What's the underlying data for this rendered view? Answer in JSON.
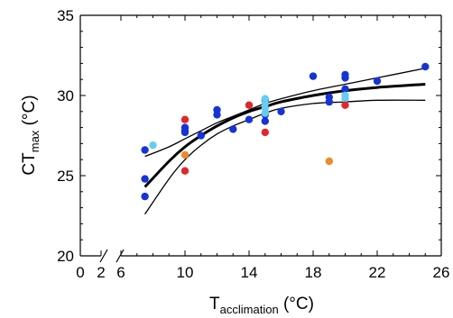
{
  "chart_data": {
    "type": "scatter",
    "title": "",
    "xlabel": {
      "main": "T",
      "sub": "acclimation",
      "unit": " (°C)"
    },
    "ylabel": {
      "main": "CT",
      "sub": "max",
      "unit": " (°C)"
    },
    "xlim": [
      6,
      26
    ],
    "ylim": [
      20,
      35
    ],
    "x_ticks": [
      0,
      2,
      6,
      10,
      14,
      18,
      22,
      26
    ],
    "x_tick_labels": [
      "0",
      "2",
      "6",
      "10",
      "14",
      "18",
      "22",
      "26"
    ],
    "y_ticks": [
      20,
      25,
      30,
      35
    ],
    "y_tick_labels": [
      "20",
      "25",
      "30",
      "35"
    ],
    "x_axis_break": true,
    "grid": false,
    "legend": "none",
    "colors": {
      "blue": "#1533d6",
      "light_blue": "#66ccf2",
      "red": "#e3262b",
      "orange": "#ec8a2c",
      "line": "#000000"
    },
    "series": [
      {
        "color": "blue",
        "points": [
          {
            "x": 7.5,
            "y": 26.6
          },
          {
            "x": 7.5,
            "y": 24.8
          },
          {
            "x": 7.5,
            "y": 23.7
          },
          {
            "x": 10,
            "y": 28.0
          },
          {
            "x": 10,
            "y": 27.8
          },
          {
            "x": 10,
            "y": 27.7
          },
          {
            "x": 11,
            "y": 27.5
          },
          {
            "x": 12,
            "y": 29.1
          },
          {
            "x": 12,
            "y": 28.8
          },
          {
            "x": 13,
            "y": 27.9
          },
          {
            "x": 14,
            "y": 28.5
          },
          {
            "x": 15,
            "y": 29.7
          },
          {
            "x": 15,
            "y": 28.8
          },
          {
            "x": 15,
            "y": 28.4
          },
          {
            "x": 16,
            "y": 29.0
          },
          {
            "x": 18,
            "y": 31.2
          },
          {
            "x": 19,
            "y": 29.9
          },
          {
            "x": 19,
            "y": 29.6
          },
          {
            "x": 20,
            "y": 31.3
          },
          {
            "x": 20,
            "y": 31.1
          },
          {
            "x": 20,
            "y": 30.4
          },
          {
            "x": 22,
            "y": 30.9
          },
          {
            "x": 25,
            "y": 31.8
          }
        ]
      },
      {
        "color": "light_blue",
        "points": [
          {
            "x": 8,
            "y": 26.9
          },
          {
            "x": 15,
            "y": 29.8
          },
          {
            "x": 15,
            "y": 29.5
          },
          {
            "x": 15,
            "y": 29.2
          },
          {
            "x": 15,
            "y": 28.9
          },
          {
            "x": 20,
            "y": 30.0
          },
          {
            "x": 20,
            "y": 29.8
          }
        ]
      },
      {
        "color": "red",
        "points": [
          {
            "x": 10,
            "y": 28.5
          },
          {
            "x": 10,
            "y": 25.3
          },
          {
            "x": 14,
            "y": 29.4
          },
          {
            "x": 15,
            "y": 27.7
          },
          {
            "x": 20,
            "y": 29.4
          }
        ]
      },
      {
        "color": "orange",
        "points": [
          {
            "x": 10,
            "y": 26.3
          },
          {
            "x": 19,
            "y": 25.9
          }
        ]
      }
    ],
    "fit_lines": [
      {
        "style": "fit",
        "points": [
          [
            7.5,
            24.3
          ],
          [
            9,
            25.9
          ],
          [
            10,
            26.8
          ],
          [
            11,
            27.5
          ],
          [
            12,
            28.1
          ],
          [
            13,
            28.6
          ],
          [
            14,
            29.0
          ],
          [
            15,
            29.3
          ],
          [
            16,
            29.6
          ],
          [
            18,
            30.0
          ],
          [
            20,
            30.3
          ],
          [
            22,
            30.5
          ],
          [
            25,
            30.7
          ]
        ]
      },
      {
        "style": "upper",
        "points": [
          [
            7.5,
            26.2
          ],
          [
            9,
            26.8
          ],
          [
            10,
            27.3
          ],
          [
            11,
            27.8
          ],
          [
            12,
            28.3
          ],
          [
            13,
            28.7
          ],
          [
            14,
            29.1
          ],
          [
            15,
            29.5
          ],
          [
            16,
            29.8
          ],
          [
            18,
            30.3
          ],
          [
            20,
            30.7
          ],
          [
            22,
            31.1
          ],
          [
            25,
            31.7
          ]
        ]
      },
      {
        "style": "lower",
        "points": [
          [
            7.5,
            22.6
          ],
          [
            9,
            24.8
          ],
          [
            10,
            26.0
          ],
          [
            11,
            26.9
          ],
          [
            12,
            27.6
          ],
          [
            13,
            28.1
          ],
          [
            14,
            28.5
          ],
          [
            15,
            28.9
          ],
          [
            16,
            29.2
          ],
          [
            18,
            29.5
          ],
          [
            20,
            29.6
          ],
          [
            22,
            29.7
          ],
          [
            25,
            29.7
          ]
        ]
      }
    ]
  }
}
